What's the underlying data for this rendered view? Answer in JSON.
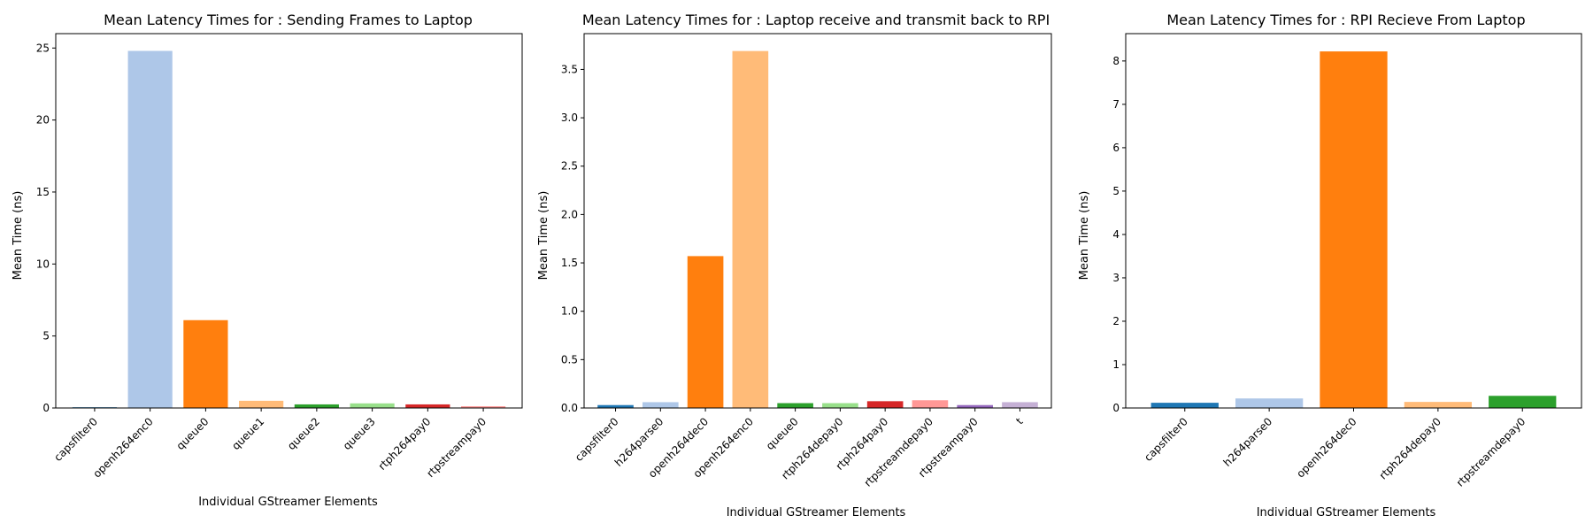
{
  "chart_data": [
    {
      "type": "bar",
      "title": "Mean Latency Times for : Sending Frames to Laptop",
      "xlabel": "Individual GStreamer Elements",
      "ylabel": "Mean Time (ns)",
      "ylim": [
        0,
        26
      ],
      "yticks": [
        0,
        5,
        10,
        15,
        20,
        25
      ],
      "categories": [
        "capsfilter0",
        "openh264enc0",
        "queue0",
        "queue1",
        "queue2",
        "queue3",
        "rtph264pay0",
        "rtpstreampay0"
      ],
      "values": [
        0.05,
        24.8,
        6.1,
        0.5,
        0.25,
        0.32,
        0.25,
        0.12
      ],
      "colors": [
        "#1f77b4",
        "#aec7e8",
        "#ff7f0e",
        "#ffbb78",
        "#2ca02c",
        "#98df8a",
        "#d62728",
        "#ff9896"
      ],
      "grid": false
    },
    {
      "type": "bar",
      "title": "Mean Latency Times for : Laptop receive and transmit back to RPI",
      "xlabel": "Individual GStreamer Elements",
      "ylabel": "Mean Time (ns)",
      "ylim": [
        0,
        3.87
      ],
      "yticks": [
        0.0,
        0.5,
        1.0,
        1.5,
        2.0,
        2.5,
        3.0,
        3.5
      ],
      "tick_format": 1,
      "categories": [
        "capsfilter0",
        "h264parse0",
        "openh264dec0",
        "openh264enc0",
        "queue0",
        "rtph264depay0",
        "rtph264pay0",
        "rtpstreamdepay0",
        "rtpstreampay0",
        "t"
      ],
      "values": [
        0.03,
        0.06,
        1.57,
        3.69,
        0.05,
        0.05,
        0.07,
        0.08,
        0.03,
        0.06
      ],
      "colors": [
        "#1f77b4",
        "#aec7e8",
        "#ff7f0e",
        "#ffbb78",
        "#2ca02c",
        "#98df8a",
        "#d62728",
        "#ff9896",
        "#9467bd",
        "#c5b0d5"
      ],
      "grid": false
    },
    {
      "type": "bar",
      "title": "Mean Latency Times for : RPI Recieve From Laptop",
      "xlabel": "Individual GStreamer Elements",
      "ylabel": "Mean Time (ns)",
      "ylim": [
        0,
        8.63
      ],
      "yticks": [
        0,
        1,
        2,
        3,
        4,
        5,
        6,
        7,
        8
      ],
      "categories": [
        "capsfilter0",
        "h264parse0",
        "openh264dec0",
        "rtph264depay0",
        "rtpstreamdepay0"
      ],
      "values": [
        0.12,
        0.22,
        8.22,
        0.14,
        0.28
      ],
      "colors": [
        "#1f77b4",
        "#aec7e8",
        "#ff7f0e",
        "#ffbb78",
        "#2ca02c"
      ],
      "grid": false
    }
  ]
}
